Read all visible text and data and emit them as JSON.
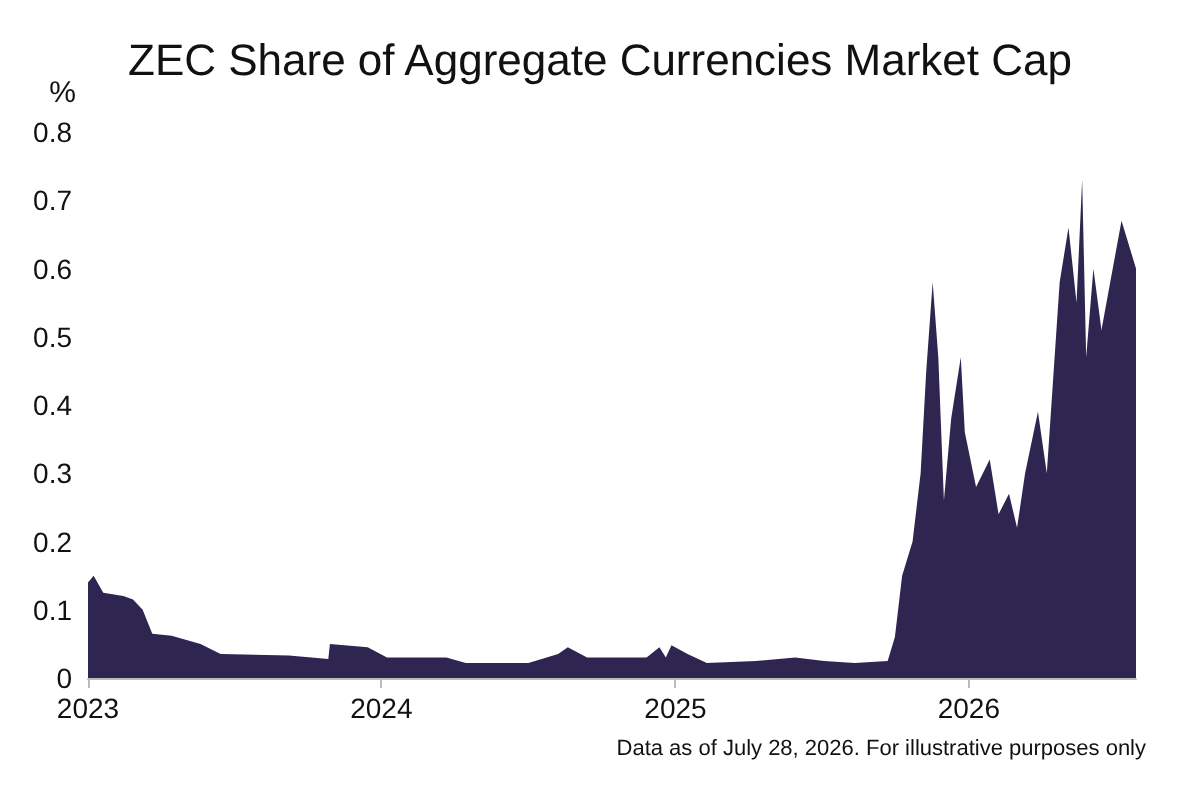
{
  "chart_data": {
    "type": "area",
    "title": "ZEC Share of Aggregate Currencies Market Cap",
    "ylabel": "%",
    "annotations": [
      "Data as of July 28, 2026. For illustrative purposes only"
    ],
    "x": [
      "2023-01-01",
      "2023-01-08",
      "2023-01-20",
      "2023-02-14",
      "2023-02-26",
      "2023-03-10",
      "2023-03-22",
      "2023-04-15",
      "2023-05-21",
      "2023-06-15",
      "2023-09-08",
      "2023-10-27",
      "2023-10-29",
      "2023-12-15",
      "2024-01-08",
      "2024-03-22",
      "2024-04-15",
      "2024-07-02",
      "2024-08-08",
      "2024-08-20",
      "2024-09-13",
      "2024-11-26",
      "2024-12-12",
      "2024-12-20",
      "2024-12-27",
      "2025-01-16",
      "2025-02-09",
      "2025-04-11",
      "2025-05-30",
      "2025-07-05",
      "2025-08-12",
      "2025-09-22",
      "2025-10-01",
      "2025-10-10",
      "2025-10-23",
      "2025-11-02",
      "2025-11-09",
      "2025-11-17",
      "2025-11-24",
      "2025-12-01",
      "2025-12-10",
      "2025-12-22",
      "2025-12-27",
      "2026-01-10",
      "2026-01-27",
      "2026-02-07",
      "2026-02-20",
      "2026-03-02",
      "2026-03-12",
      "2026-03-28",
      "2026-04-08",
      "2026-04-24",
      "2026-05-05",
      "2026-05-15",
      "2026-05-22",
      "2026-05-27",
      "2026-06-05",
      "2026-06-15",
      "2026-07-10",
      "2026-07-28"
    ],
    "series": [
      {
        "color": "#2e2650",
        "values": [
          0.14,
          0.15,
          0.125,
          0.12,
          0.115,
          0.1,
          0.065,
          0.062,
          0.05,
          0.035,
          0.033,
          0.028,
          0.05,
          0.045,
          0.03,
          0.03,
          0.022,
          0.022,
          0.035,
          0.045,
          0.03,
          0.03,
          0.045,
          0.03,
          0.048,
          0.035,
          0.022,
          0.025,
          0.03,
          0.025,
          0.022,
          0.025,
          0.06,
          0.15,
          0.2,
          0.3,
          0.45,
          0.58,
          0.47,
          0.26,
          0.38,
          0.47,
          0.36,
          0.28,
          0.32,
          0.24,
          0.27,
          0.22,
          0.3,
          0.39,
          0.3,
          0.58,
          0.66,
          0.55,
          0.73,
          0.47,
          0.6,
          0.51,
          0.67,
          0.6
        ]
      }
    ],
    "xlim": [
      "2023-01-01",
      "2026-07-28"
    ],
    "xticks": [
      "2023",
      "2024",
      "2025",
      "2026"
    ],
    "ylim": [
      0,
      0.8
    ],
    "yticks": [
      0,
      0.1,
      0.2,
      0.3,
      0.4,
      0.5,
      0.6,
      0.7,
      0.8
    ],
    "grid": false
  }
}
